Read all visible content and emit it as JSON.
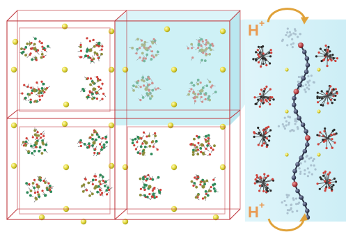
{
  "figure": {
    "labels": {
      "proton_top": {
        "base": "H",
        "sup": "+"
      },
      "proton_bottom": {
        "base": "H",
        "sup": "+"
      }
    },
    "colors": {
      "cell_edge": "#c0393f",
      "highlight_fill": "#c6eef4",
      "panel_fill": "#d4f1f7",
      "proton_text": "#e99a52",
      "arrow": "#e0a23a",
      "chain_atom_dark": "#3c4560",
      "chain_atom_red": "#b13a3f",
      "cluster_red": "#d0413a",
      "cluster_green": "#2f8a5a",
      "cluster_olive": "#8c8c3a",
      "cation_yellow": "#e2d93a",
      "cluster_gray": "#6b6b6b"
    },
    "icons": [
      "crystal-lattice",
      "polyoxometalate-cluster",
      "cation-sphere",
      "proton-hopping-chain",
      "curved-arrow"
    ]
  }
}
